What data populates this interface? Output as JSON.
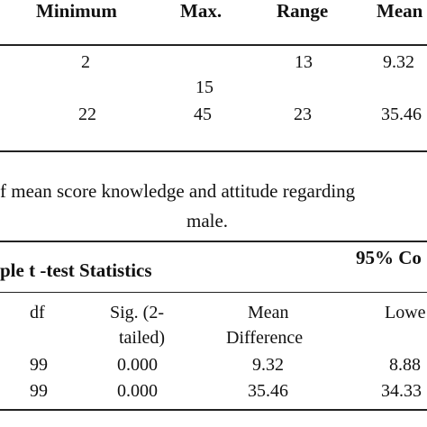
{
  "table1": {
    "headers": [
      "Minimum",
      "Max.",
      "Range",
      "Mean"
    ],
    "rows": [
      [
        "2",
        "15",
        "13",
        "9.32"
      ],
      [
        "22",
        "45",
        "23",
        "35.46"
      ]
    ]
  },
  "caption": {
    "line1": "f mean score knowledge and attitude regarding",
    "line2": "male."
  },
  "table2": {
    "title": "ple t -test Statistics",
    "ci_label": "95% Co",
    "col_df": "df",
    "col_sig_1": "Sig. (2-",
    "col_sig_2": "tailed)",
    "col_md_1": "Mean",
    "col_md_2": "Difference",
    "col_lower": "Lowe",
    "rows": [
      {
        "df": "99",
        "sig": "0.000",
        "md": "9.32",
        "lower": "8.88"
      },
      {
        "df": "99",
        "sig": "0.000",
        "md": "35.46",
        "lower": "34.33"
      }
    ]
  }
}
